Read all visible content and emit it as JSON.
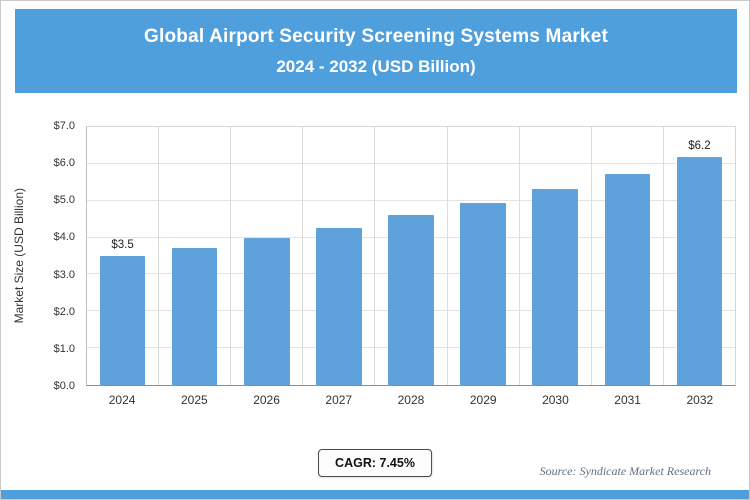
{
  "header": {
    "title_line1": "Global Airport Security Screening Systems Market",
    "title_line2": "2024 - 2032 (USD Billion)"
  },
  "chart_data": {
    "type": "bar",
    "title": "Global Airport Security Screening Systems Market 2024 - 2032 (USD Billion)",
    "categories": [
      "2024",
      "2025",
      "2026",
      "2027",
      "2028",
      "2029",
      "2030",
      "2031",
      "2032"
    ],
    "values": [
      3.5,
      3.72,
      3.98,
      4.27,
      4.6,
      4.95,
      5.32,
      5.72,
      6.2
    ],
    "data_labels": [
      "$3.5",
      "",
      "",
      "",
      "",
      "",
      "",
      "",
      "$6.2"
    ],
    "xlabel": "",
    "ylabel": "Market Size (USD Billion)",
    "ylim": [
      0,
      7
    ],
    "ytick_labels": [
      "$0.0",
      "$1.0",
      "$2.0",
      "$3.0",
      "$4.0",
      "$5.0",
      "$6.0",
      "$7.0"
    ],
    "grid": true,
    "legend_position": "none"
  },
  "footer": {
    "cagr_label": "CAGR: 7.45%",
    "source_label": "Source: Syndicate Market Research"
  },
  "colors": {
    "header_bg": "#509FDD",
    "bar": "#5EA1DB",
    "accent_strip": "#509FDD"
  }
}
